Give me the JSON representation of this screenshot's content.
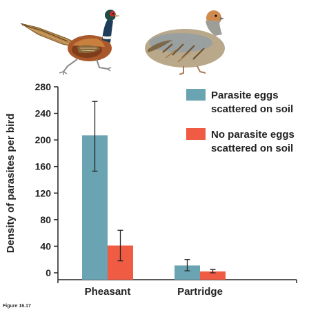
{
  "figure_caption": "Figure 16.17",
  "colors": {
    "series_1": "#6aa4b3",
    "series_2": "#ef5b43",
    "axis": "#222222",
    "error_bar": "#222222"
  },
  "illustrations": {
    "left": "pheasant-illustration",
    "right": "partridge-illustration"
  },
  "chart_data": {
    "type": "bar",
    "title": "",
    "ylabel": "Density of parasites per bird",
    "xlabel": "",
    "ylim": [
      0,
      280
    ],
    "yticks": [
      0,
      40,
      80,
      120,
      160,
      200,
      240,
      280
    ],
    "categories": [
      "Pheasant",
      "Partridge"
    ],
    "grid": false,
    "legend_position": "top-right",
    "series": [
      {
        "name": "Parasite eggs scattered on soil",
        "legend_lines": [
          "Parasite eggs",
          "scattered on soil"
        ],
        "values": [
          207,
          11
        ],
        "error_low": [
          153,
          3
        ],
        "error_high": [
          258,
          20
        ]
      },
      {
        "name": "No parasite eggs scattered on soil",
        "legend_lines": [
          "No parasite eggs",
          "scattered on soil"
        ],
        "values": [
          41,
          2
        ],
        "error_low": [
          18,
          0
        ],
        "error_high": [
          64,
          5
        ]
      }
    ]
  }
}
